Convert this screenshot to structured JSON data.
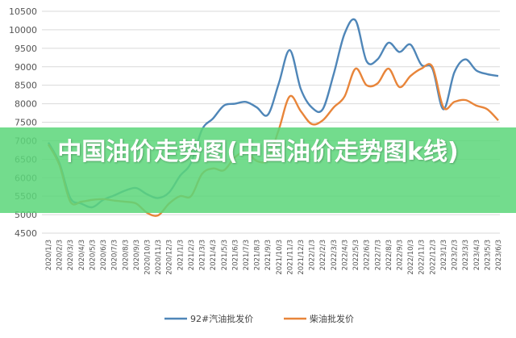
{
  "banner": {
    "title": "中国油价走势图(中国油价走势图k线)"
  },
  "chart_data": {
    "type": "line",
    "title": "",
    "xlabel": "",
    "ylabel": "",
    "ylim": [
      4500,
      10500
    ],
    "yticks": [
      4500,
      5000,
      5500,
      6000,
      6500,
      7000,
      7500,
      8000,
      8500,
      9000,
      9500,
      10000,
      10500
    ],
    "x_tick_labels": [
      "2020/1/3",
      "2020/2/3",
      "2020/3/3",
      "2020/4/3",
      "2020/5/3",
      "2020/6/3",
      "2020/7/3",
      "2020/8/3",
      "2020/9/3",
      "2020/10/3",
      "2020/11/3",
      "2020/12/3",
      "2021/1/3",
      "2021/2/3",
      "2021/3/3",
      "2021/4/3",
      "2021/5/3",
      "2021/6/3",
      "2021/7/3",
      "2021/8/3",
      "2021/9/3",
      "2021/10/3",
      "2021/11/3",
      "2021/12/3",
      "2022/1/3",
      "2022/2/3",
      "2022/3/3",
      "2022/4/3",
      "2022/5/3",
      "2022/6/3",
      "2022/7/3",
      "2022/8/3",
      "2022/9/3",
      "2022/10/3",
      "2022/11/3",
      "2022/12/3",
      "2023/1/3",
      "2023/2/3",
      "2023/3/3",
      "2023/4/3",
      "2023/5/3",
      "2023/6/3"
    ],
    "legend_position": "bottom",
    "grid": true,
    "series": [
      {
        "name": "92#汽油批发价",
        "color": "#4f86b8",
        "values": [
          6950,
          6400,
          5450,
          5300,
          5200,
          5400,
          5520,
          5650,
          5720,
          5550,
          5450,
          5600,
          6050,
          6400,
          7300,
          7600,
          7950,
          8000,
          8050,
          7900,
          7700,
          8550,
          9450,
          8400,
          7900,
          7850,
          8800,
          9900,
          10250,
          9150,
          9200,
          9650,
          9400,
          9600,
          9050,
          8950,
          7850,
          8850,
          9200,
          8900,
          8800,
          8750
        ]
      },
      {
        "name": "柴油批发价",
        "color": "#e8853a",
        "values": [
          6900,
          6350,
          5350,
          5350,
          5400,
          5420,
          5380,
          5350,
          5300,
          5050,
          4980,
          5300,
          5500,
          5500,
          6100,
          6250,
          6200,
          6550,
          6700,
          6450,
          6500,
          7300,
          8200,
          7800,
          7450,
          7550,
          7900,
          8200,
          8950,
          8500,
          8550,
          8950,
          8450,
          8750,
          8950,
          9000,
          7900,
          8050,
          8100,
          7950,
          7850,
          7550
        ]
      }
    ]
  }
}
